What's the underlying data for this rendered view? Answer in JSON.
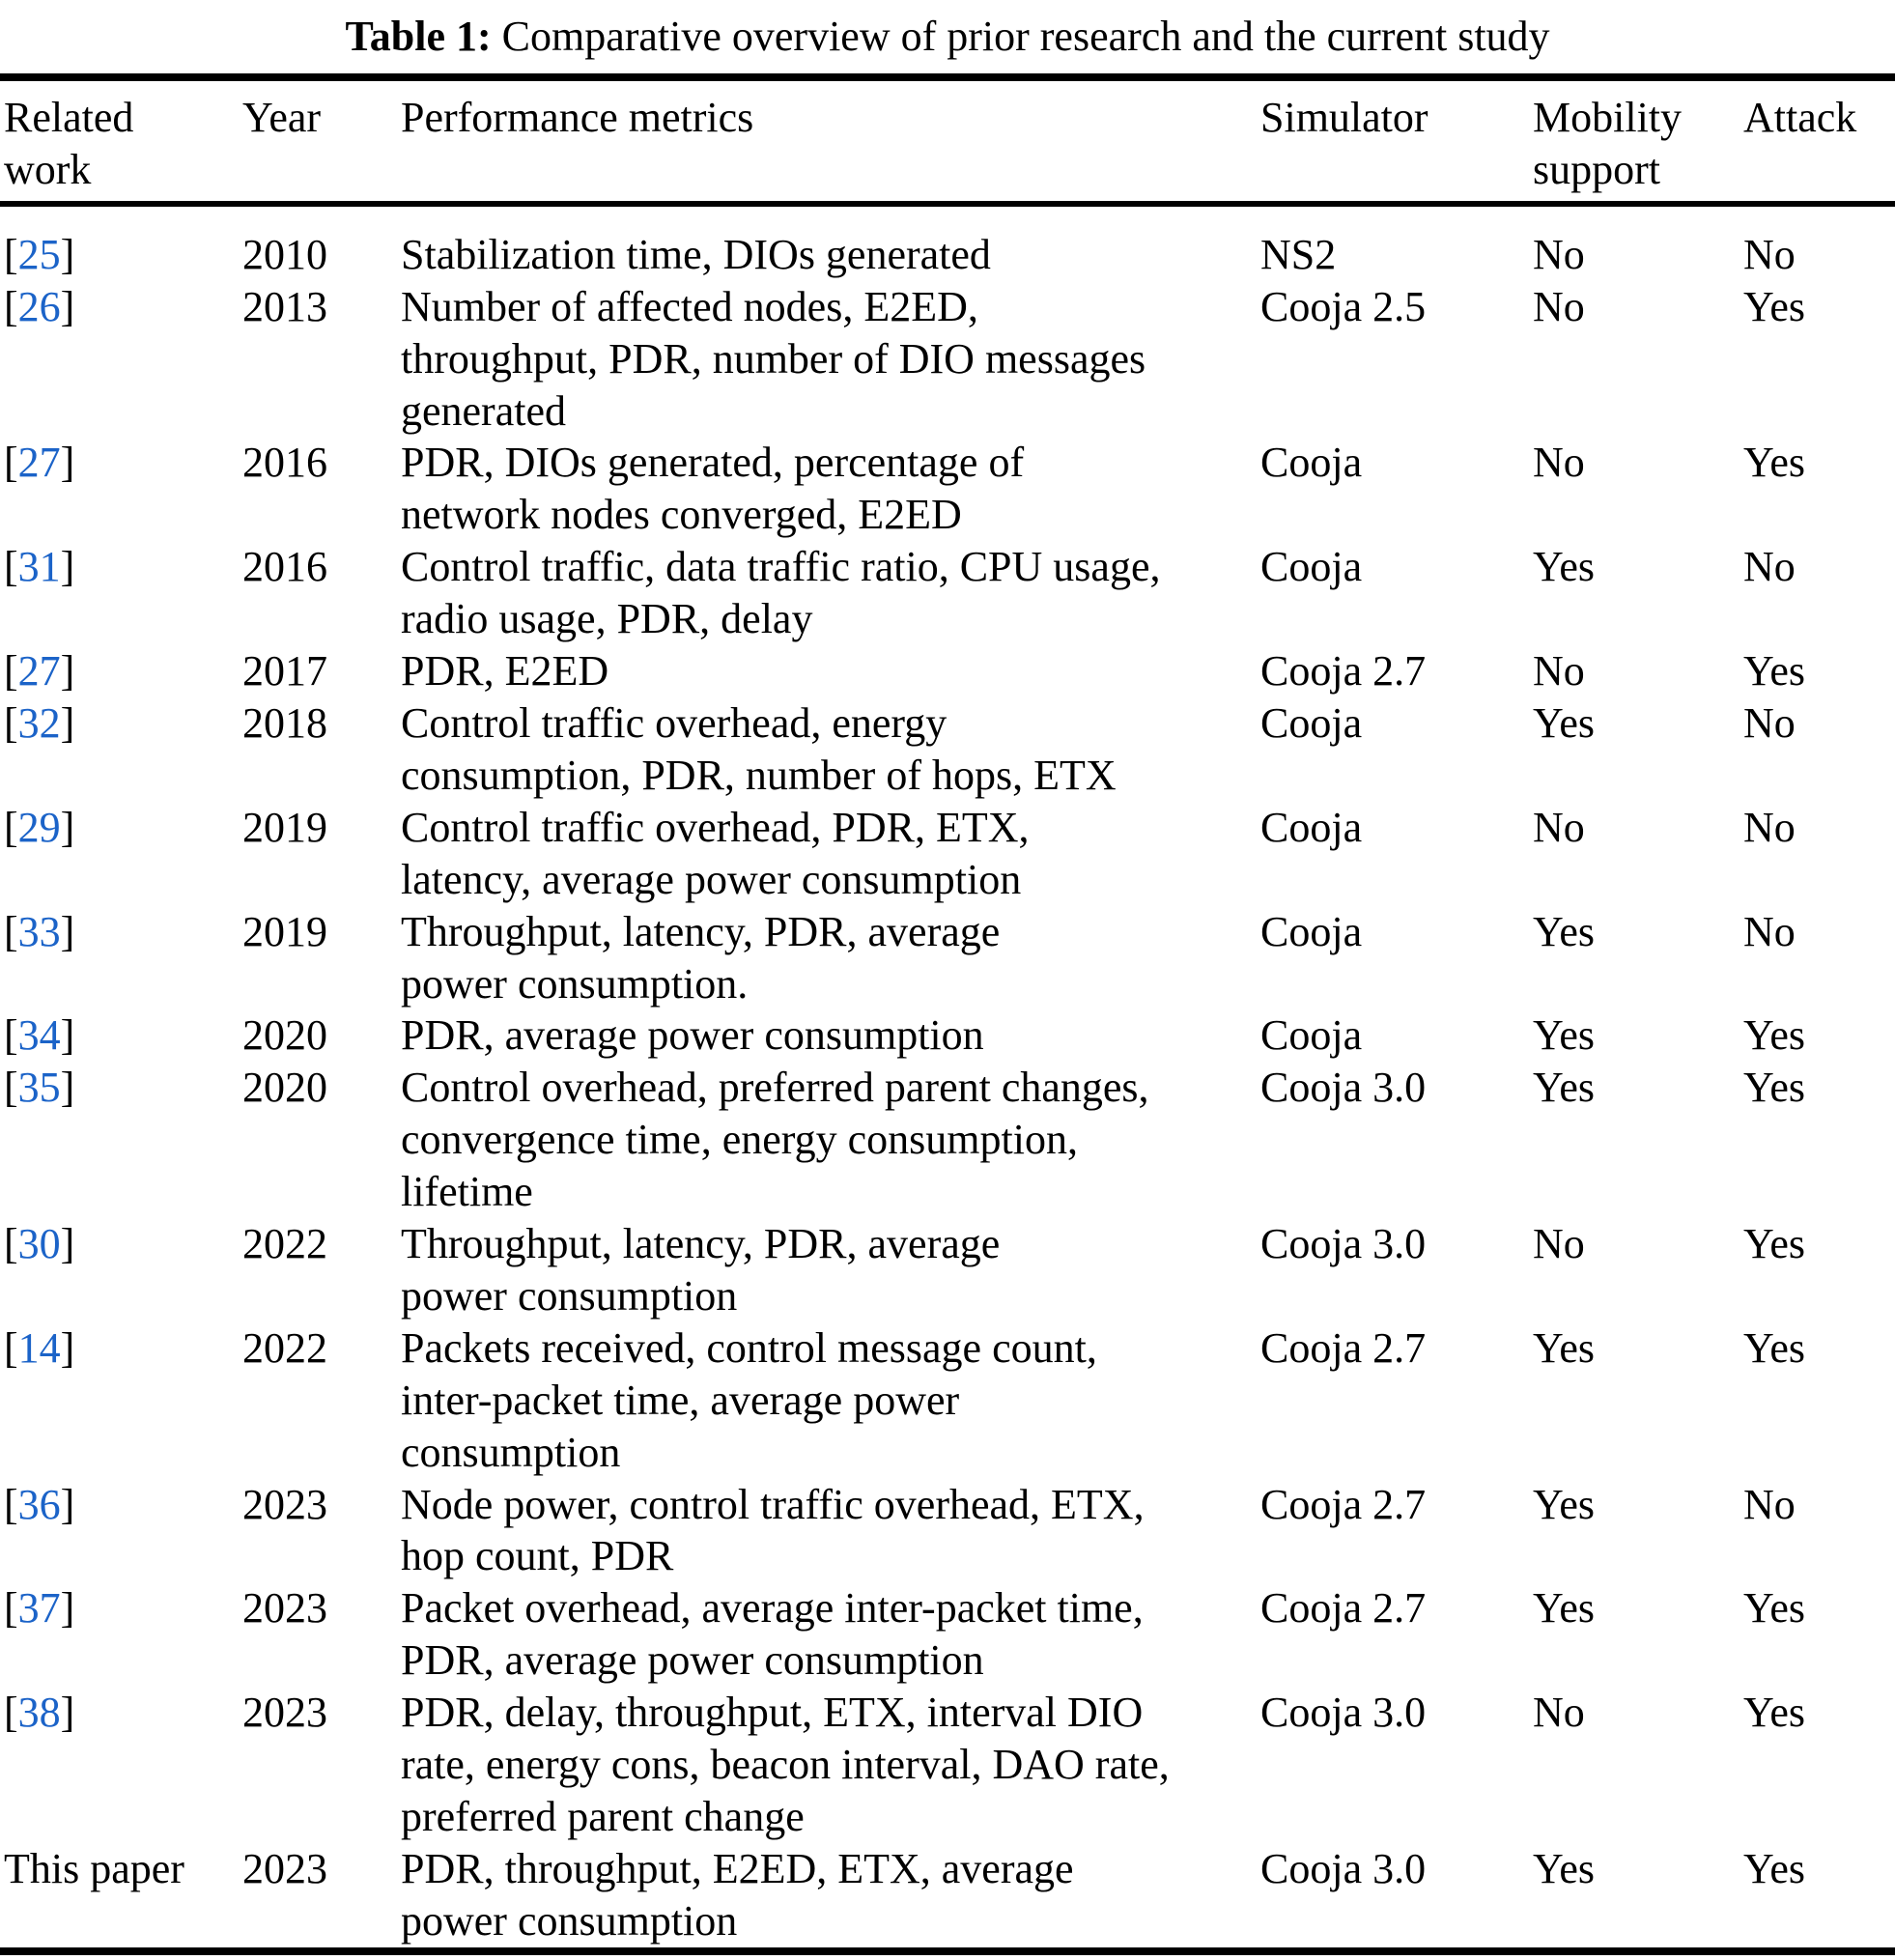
{
  "caption": {
    "label": "Table 1:",
    "text": " Comparative overview of prior research and the current study"
  },
  "columns": {
    "related_work": "Related\nwork",
    "year": "Year",
    "metrics": "Performance metrics",
    "simulator": "Simulator",
    "mobility": "Mobility\nsupport",
    "attack": "Attack"
  },
  "colors": {
    "citation_blue": "#1b63c8",
    "text": "#000000",
    "background": "#ffffff"
  },
  "rows": [
    {
      "ref": "25",
      "cite": true,
      "year": "2010",
      "metrics": "Stabilization time, DIOs generated",
      "simulator": "NS2",
      "mobility": "No",
      "attack": "No"
    },
    {
      "ref": "26",
      "cite": true,
      "year": "2013",
      "metrics": "Number of affected nodes, E2ED,\nthroughput, PDR, number of DIO messages\ngenerated",
      "simulator": "Cooja 2.5",
      "mobility": "No",
      "attack": "Yes"
    },
    {
      "ref": "27",
      "cite": true,
      "year": "2016",
      "metrics": "PDR, DIOs generated, percentage of\nnetwork nodes converged, E2ED",
      "simulator": "Cooja",
      "mobility": "No",
      "attack": "Yes"
    },
    {
      "ref": "31",
      "cite": true,
      "year": "2016",
      "metrics": "Control traffic, data traffic ratio, CPU usage,\nradio usage, PDR, delay",
      "simulator": "Cooja",
      "mobility": "Yes",
      "attack": "No"
    },
    {
      "ref": "27",
      "cite": true,
      "year": "2017",
      "metrics": "PDR, E2ED",
      "simulator": "Cooja 2.7",
      "mobility": "No",
      "attack": "Yes"
    },
    {
      "ref": "32",
      "cite": true,
      "year": "2018",
      "metrics": "Control traffic overhead, energy\nconsumption, PDR, number of hops, ETX",
      "simulator": "Cooja",
      "mobility": "Yes",
      "attack": "No"
    },
    {
      "ref": "29",
      "cite": true,
      "year": "2019",
      "metrics": "Control traffic overhead, PDR, ETX,\nlatency, average power consumption",
      "simulator": "Cooja",
      "mobility": "No",
      "attack": "No"
    },
    {
      "ref": "33",
      "cite": true,
      "year": "2019",
      "metrics": "Throughput, latency, PDR, average\npower consumption.",
      "simulator": "Cooja",
      "mobility": "Yes",
      "attack": "No"
    },
    {
      "ref": "34",
      "cite": true,
      "year": "2020",
      "metrics": "PDR, average power consumption",
      "simulator": "Cooja",
      "mobility": "Yes",
      "attack": "Yes"
    },
    {
      "ref": "35",
      "cite": true,
      "year": "2020",
      "metrics": "Control overhead, preferred parent changes,\nconvergence time, energy consumption,\nlifetime",
      "simulator": "Cooja 3.0",
      "mobility": "Yes",
      "attack": "Yes"
    },
    {
      "ref": "30",
      "cite": true,
      "year": "2022",
      "metrics": "Throughput, latency, PDR, average\npower consumption",
      "simulator": "Cooja 3.0",
      "mobility": "No",
      "attack": "Yes"
    },
    {
      "ref": "14",
      "cite": true,
      "year": "2022",
      "metrics": "Packets received, control message count,\ninter-packet time, average power\nconsumption",
      "simulator": "Cooja 2.7",
      "mobility": "Yes",
      "attack": "Yes"
    },
    {
      "ref": "36",
      "cite": true,
      "year": "2023",
      "metrics": "Node power, control traffic overhead, ETX,\nhop count, PDR",
      "simulator": "Cooja 2.7",
      "mobility": "Yes",
      "attack": "No"
    },
    {
      "ref": "37",
      "cite": true,
      "year": "2023",
      "metrics": "Packet overhead, average inter-packet time,\nPDR, average power consumption",
      "simulator": "Cooja 2.7",
      "mobility": "Yes",
      "attack": "Yes"
    },
    {
      "ref": "38",
      "cite": true,
      "year": "2023",
      "metrics": "PDR, delay, throughput, ETX, interval DIO\nrate, energy cons, beacon interval, DAO rate,\npreferred parent change",
      "simulator": "Cooja 3.0",
      "mobility": "No",
      "attack": "Yes"
    },
    {
      "ref": "This paper",
      "cite": false,
      "year": "2023",
      "metrics": "PDR, throughput, E2ED, ETX, average\npower consumption",
      "simulator": "Cooja 3.0",
      "mobility": "Yes",
      "attack": "Yes"
    }
  ]
}
